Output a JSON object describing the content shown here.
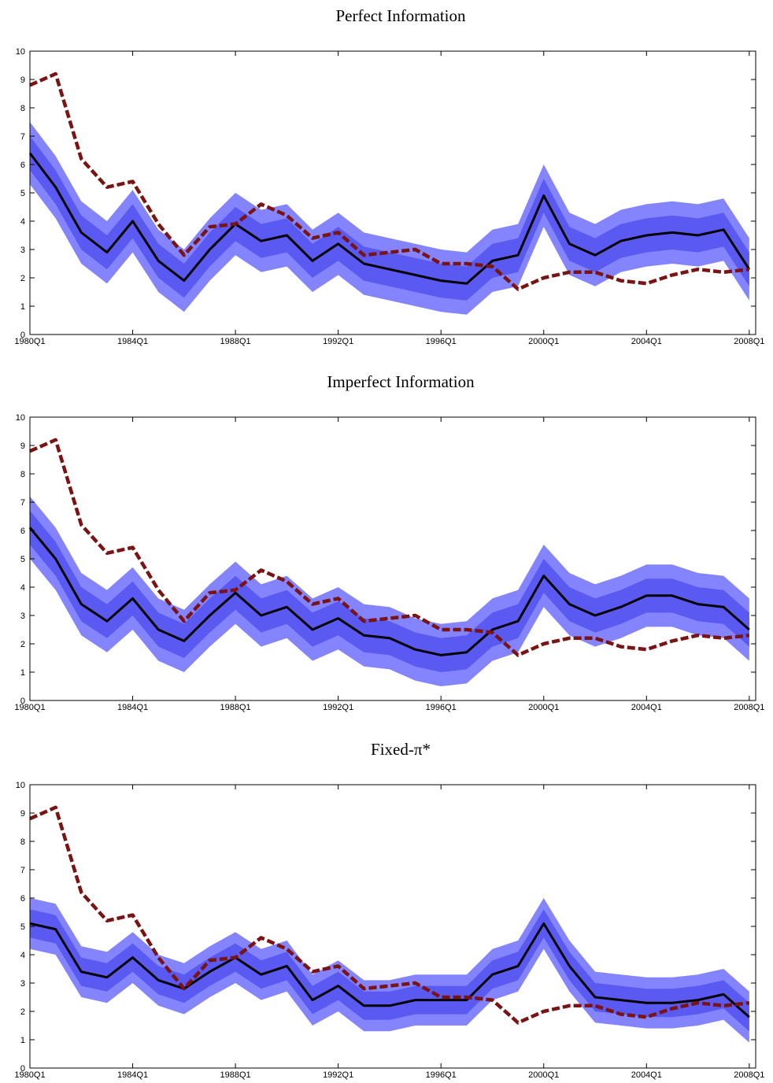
{
  "chart_data": [
    {
      "type": "line",
      "title": "Perfect Information",
      "x": [
        1980,
        1981,
        1982,
        1983,
        1984,
        1985,
        1986,
        1987,
        1988,
        1989,
        1990,
        1991,
        1992,
        1993,
        1994,
        1995,
        1996,
        1997,
        1998,
        1999,
        2000,
        2001,
        2002,
        2003,
        2004,
        2005,
        2006,
        2007,
        2008
      ],
      "xlim": [
        1980,
        2008.25
      ],
      "xticks": [
        {
          "value": 1980,
          "label": "1980Q1"
        },
        {
          "value": 1984,
          "label": "1984Q1"
        },
        {
          "value": 1988,
          "label": "1988Q1"
        },
        {
          "value": 1992,
          "label": "1992Q1"
        },
        {
          "value": 1996,
          "label": "1996Q1"
        },
        {
          "value": 2000,
          "label": "2000Q1"
        },
        {
          "value": 2004,
          "label": "2004Q1"
        },
        {
          "value": 2008,
          "label": "2008Q1"
        }
      ],
      "ylim": [
        0,
        10
      ],
      "yticks": [
        0,
        1,
        2,
        3,
        4,
        5,
        6,
        7,
        8,
        9,
        10
      ],
      "bands": [
        {
          "color": "#8484ff",
          "low": [
            5.3,
            4.1,
            2.5,
            1.8,
            2.9,
            1.5,
            0.8,
            1.9,
            2.8,
            2.2,
            2.4,
            1.5,
            2.1,
            1.4,
            1.2,
            1.0,
            0.8,
            0.7,
            1.5,
            1.7,
            3.8,
            2.1,
            1.7,
            2.2,
            2.4,
            2.5,
            2.4,
            2.6,
            1.2
          ],
          "high": [
            7.5,
            6.3,
            4.7,
            4.0,
            5.1,
            3.7,
            3.0,
            4.1,
            5.0,
            4.4,
            4.6,
            3.7,
            4.3,
            3.6,
            3.4,
            3.2,
            3.0,
            2.9,
            3.7,
            3.9,
            6.0,
            4.3,
            3.9,
            4.4,
            4.6,
            4.7,
            4.6,
            4.8,
            3.4
          ]
        },
        {
          "color": "#5a5af2",
          "low": [
            5.8,
            4.6,
            3.0,
            2.3,
            3.4,
            2.0,
            1.3,
            2.4,
            3.3,
            2.7,
            2.9,
            2.0,
            2.6,
            1.9,
            1.7,
            1.5,
            1.3,
            1.2,
            2.0,
            2.2,
            4.3,
            2.6,
            2.2,
            2.7,
            2.9,
            3.0,
            2.9,
            3.1,
            1.7
          ],
          "high": [
            7.0,
            5.8,
            4.2,
            3.5,
            4.6,
            3.2,
            2.5,
            3.6,
            4.5,
            3.9,
            4.1,
            3.2,
            3.8,
            3.1,
            2.9,
            2.7,
            2.5,
            2.4,
            3.2,
            3.4,
            5.5,
            3.8,
            3.4,
            3.9,
            4.1,
            4.2,
            4.1,
            4.3,
            2.9
          ]
        }
      ],
      "series": [
        {
          "color": "#000000",
          "dashed": false,
          "values": [
            6.4,
            5.2,
            3.6,
            2.9,
            4.0,
            2.6,
            1.9,
            3.0,
            3.9,
            3.3,
            3.5,
            2.6,
            3.2,
            2.5,
            2.3,
            2.1,
            1.9,
            1.8,
            2.6,
            2.8,
            4.9,
            3.2,
            2.8,
            3.3,
            3.5,
            3.6,
            3.5,
            3.7,
            2.3
          ]
        },
        {
          "color": "#7a1414",
          "dashed": true,
          "values": [
            8.8,
            9.2,
            6.2,
            5.2,
            5.4,
            3.9,
            2.8,
            3.8,
            3.9,
            4.6,
            4.2,
            3.4,
            3.6,
            2.8,
            2.9,
            3.0,
            2.5,
            2.5,
            2.4,
            1.6,
            2.0,
            2.2,
            2.2,
            1.9,
            1.8,
            2.1,
            2.3,
            2.2,
            2.3
          ]
        }
      ]
    },
    {
      "type": "line",
      "title": "Imperfect Information",
      "x": [
        1980,
        1981,
        1982,
        1983,
        1984,
        1985,
        1986,
        1987,
        1988,
        1989,
        1990,
        1991,
        1992,
        1993,
        1994,
        1995,
        1996,
        1997,
        1998,
        1999,
        2000,
        2001,
        2002,
        2003,
        2004,
        2005,
        2006,
        2007,
        2008
      ],
      "xlim": [
        1980,
        2008.25
      ],
      "xticks": [
        {
          "value": 1980,
          "label": "1980Q1"
        },
        {
          "value": 1984,
          "label": "1984Q1"
        },
        {
          "value": 1988,
          "label": "1988Q1"
        },
        {
          "value": 1992,
          "label": "1992Q1"
        },
        {
          "value": 1996,
          "label": "1996Q1"
        },
        {
          "value": 2000,
          "label": "2000Q1"
        },
        {
          "value": 2004,
          "label": "2004Q1"
        },
        {
          "value": 2008,
          "label": "2008Q1"
        }
      ],
      "ylim": [
        0,
        10
      ],
      "yticks": [
        0,
        1,
        2,
        3,
        4,
        5,
        6,
        7,
        8,
        9,
        10
      ],
      "bands": [
        {
          "color": "#8484ff",
          "low": [
            5.0,
            3.9,
            2.3,
            1.7,
            2.5,
            1.4,
            1.0,
            1.9,
            2.7,
            1.9,
            2.2,
            1.4,
            1.8,
            1.2,
            1.1,
            0.7,
            0.5,
            0.6,
            1.4,
            1.7,
            3.3,
            2.3,
            1.9,
            2.2,
            2.6,
            2.6,
            2.3,
            2.2,
            1.4
          ],
          "high": [
            7.2,
            6.1,
            4.5,
            3.9,
            4.7,
            3.6,
            3.2,
            4.1,
            4.9,
            4.1,
            4.4,
            3.6,
            4.0,
            3.4,
            3.3,
            2.9,
            2.7,
            2.8,
            3.6,
            3.9,
            5.5,
            4.5,
            4.1,
            4.4,
            4.8,
            4.8,
            4.5,
            4.4,
            3.6
          ]
        },
        {
          "color": "#5a5af2",
          "low": [
            5.5,
            4.4,
            2.8,
            2.2,
            3.0,
            1.9,
            1.5,
            2.4,
            3.2,
            2.4,
            2.7,
            1.9,
            2.3,
            1.7,
            1.6,
            1.2,
            1.0,
            1.1,
            1.9,
            2.2,
            3.8,
            2.8,
            2.4,
            2.7,
            3.1,
            3.1,
            2.8,
            2.7,
            1.9
          ],
          "high": [
            6.7,
            5.6,
            4.0,
            3.4,
            4.2,
            3.1,
            2.7,
            3.6,
            4.4,
            3.6,
            3.9,
            3.1,
            3.5,
            2.9,
            2.8,
            2.4,
            2.2,
            2.3,
            3.1,
            3.4,
            5.0,
            4.0,
            3.6,
            3.9,
            4.3,
            4.3,
            4.0,
            3.9,
            3.1
          ]
        }
      ],
      "series": [
        {
          "color": "#000000",
          "dashed": false,
          "values": [
            6.1,
            5.0,
            3.4,
            2.8,
            3.6,
            2.5,
            2.1,
            3.0,
            3.8,
            3.0,
            3.3,
            2.5,
            2.9,
            2.3,
            2.2,
            1.8,
            1.6,
            1.7,
            2.5,
            2.8,
            4.4,
            3.4,
            3.0,
            3.3,
            3.7,
            3.7,
            3.4,
            3.3,
            2.5
          ]
        },
        {
          "color": "#7a1414",
          "dashed": true,
          "values": [
            8.8,
            9.2,
            6.2,
            5.2,
            5.4,
            3.9,
            2.8,
            3.8,
            3.9,
            4.6,
            4.2,
            3.4,
            3.6,
            2.8,
            2.9,
            3.0,
            2.5,
            2.5,
            2.4,
            1.6,
            2.0,
            2.2,
            2.2,
            1.9,
            1.8,
            2.1,
            2.3,
            2.2,
            2.3
          ]
        }
      ]
    },
    {
      "type": "line",
      "title": "Fixed-π*",
      "x": [
        1980,
        1981,
        1982,
        1983,
        1984,
        1985,
        1986,
        1987,
        1988,
        1989,
        1990,
        1991,
        1992,
        1993,
        1994,
        1995,
        1996,
        1997,
        1998,
        1999,
        2000,
        2001,
        2002,
        2003,
        2004,
        2005,
        2006,
        2007,
        2008
      ],
      "xlim": [
        1980,
        2008.25
      ],
      "xticks": [
        {
          "value": 1980,
          "label": "1980Q1"
        },
        {
          "value": 1984,
          "label": "1984Q1"
        },
        {
          "value": 1988,
          "label": "1988Q1"
        },
        {
          "value": 1992,
          "label": "1992Q1"
        },
        {
          "value": 1996,
          "label": "1996Q1"
        },
        {
          "value": 2000,
          "label": "2000Q1"
        },
        {
          "value": 2004,
          "label": "2004Q1"
        },
        {
          "value": 2008,
          "label": "2008Q1"
        }
      ],
      "ylim": [
        0,
        10
      ],
      "yticks": [
        0,
        1,
        2,
        3,
        4,
        5,
        6,
        7,
        8,
        9,
        10
      ],
      "bands": [
        {
          "color": "#8484ff",
          "low": [
            4.2,
            4.0,
            2.5,
            2.3,
            3.0,
            2.2,
            1.9,
            2.5,
            3.0,
            2.4,
            2.7,
            1.5,
            2.0,
            1.3,
            1.3,
            1.5,
            1.5,
            1.5,
            2.4,
            2.7,
            4.2,
            2.7,
            1.6,
            1.5,
            1.4,
            1.4,
            1.5,
            1.7,
            0.9
          ],
          "high": [
            6.0,
            5.8,
            4.3,
            4.1,
            4.8,
            4.0,
            3.7,
            4.3,
            4.8,
            4.2,
            4.5,
            3.3,
            3.8,
            3.1,
            3.1,
            3.3,
            3.3,
            3.3,
            4.2,
            4.5,
            6.0,
            4.5,
            3.4,
            3.3,
            3.2,
            3.2,
            3.3,
            3.5,
            2.7
          ]
        },
        {
          "color": "#5a5af2",
          "low": [
            4.6,
            4.4,
            2.9,
            2.7,
            3.4,
            2.6,
            2.3,
            2.9,
            3.4,
            2.8,
            3.1,
            1.9,
            2.4,
            1.7,
            1.7,
            1.9,
            1.9,
            1.9,
            2.8,
            3.1,
            4.6,
            3.1,
            2.0,
            1.9,
            1.8,
            1.8,
            1.9,
            2.1,
            1.3
          ],
          "high": [
            5.6,
            5.4,
            3.9,
            3.7,
            4.4,
            3.6,
            3.3,
            3.9,
            4.4,
            3.8,
            4.1,
            2.9,
            3.4,
            2.7,
            2.7,
            2.9,
            2.9,
            2.9,
            3.8,
            4.1,
            5.6,
            4.1,
            3.0,
            2.9,
            2.8,
            2.8,
            2.9,
            3.1,
            2.3
          ]
        }
      ],
      "series": [
        {
          "color": "#000000",
          "dashed": false,
          "values": [
            5.1,
            4.9,
            3.4,
            3.2,
            3.9,
            3.1,
            2.8,
            3.4,
            3.9,
            3.3,
            3.6,
            2.4,
            2.9,
            2.2,
            2.2,
            2.4,
            2.4,
            2.4,
            3.3,
            3.6,
            5.1,
            3.6,
            2.5,
            2.4,
            2.3,
            2.3,
            2.4,
            2.6,
            1.8
          ]
        },
        {
          "color": "#7a1414",
          "dashed": true,
          "values": [
            8.8,
            9.2,
            6.2,
            5.2,
            5.4,
            3.9,
            2.8,
            3.8,
            3.9,
            4.6,
            4.2,
            3.4,
            3.6,
            2.8,
            2.9,
            3.0,
            2.5,
            2.5,
            2.4,
            1.6,
            2.0,
            2.2,
            2.2,
            1.9,
            1.8,
            2.1,
            2.3,
            2.2,
            2.3
          ]
        }
      ]
    }
  ]
}
